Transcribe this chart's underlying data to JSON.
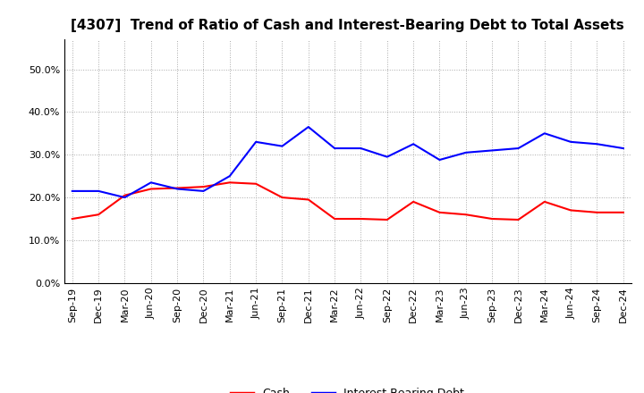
{
  "title": "[4307]  Trend of Ratio of Cash and Interest-Bearing Debt to Total Assets",
  "x_labels": [
    "Sep-19",
    "Dec-19",
    "Mar-20",
    "Jun-20",
    "Sep-20",
    "Dec-20",
    "Mar-21",
    "Jun-21",
    "Sep-21",
    "Dec-21",
    "Mar-22",
    "Jun-22",
    "Sep-22",
    "Dec-22",
    "Mar-23",
    "Jun-23",
    "Sep-23",
    "Dec-23",
    "Mar-24",
    "Jun-24",
    "Sep-24",
    "Dec-24"
  ],
  "cash": [
    15.0,
    16.0,
    20.5,
    22.0,
    22.2,
    22.5,
    23.5,
    23.2,
    20.0,
    19.5,
    15.0,
    15.0,
    14.8,
    19.0,
    16.5,
    16.0,
    15.0,
    14.8,
    19.0,
    17.0,
    16.5,
    16.5
  ],
  "ibd": [
    21.5,
    21.5,
    20.0,
    23.5,
    22.0,
    21.5,
    25.0,
    33.0,
    32.0,
    36.5,
    31.5,
    31.5,
    29.5,
    32.5,
    28.8,
    30.5,
    31.0,
    31.5,
    35.0,
    33.0,
    32.5,
    31.5
  ],
  "cash_color": "#FF0000",
  "ibd_color": "#0000FF",
  "ylim": [
    0,
    57
  ],
  "yticks": [
    0,
    10,
    20,
    30,
    40,
    50
  ],
  "background_color": "#FFFFFF",
  "grid_color": "#AAAAAA",
  "legend_labels": [
    "Cash",
    "Interest-Bearing Debt"
  ],
  "title_fontsize": 11,
  "tick_fontsize": 8,
  "legend_fontsize": 9,
  "linewidth": 1.5
}
